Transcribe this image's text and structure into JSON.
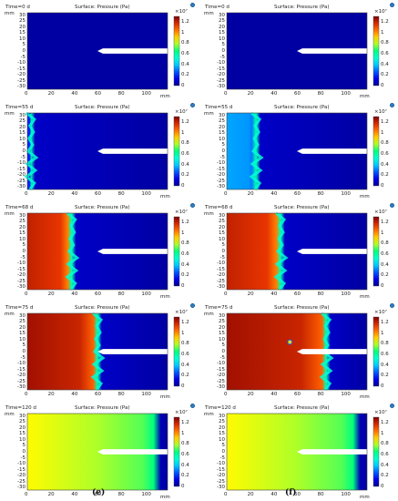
{
  "common": {
    "surface_title": "Surface: Pressure (Pa)",
    "unit": "mm",
    "exponent_label": "×10⁷",
    "x_ticks": [
      "0",
      "20",
      "40",
      "60",
      "80",
      "100"
    ],
    "y_ticks": [
      "30",
      "25",
      "20",
      "15",
      "10",
      "5",
      "0",
      "-5",
      "-10",
      "-15",
      "-20",
      "-25",
      "-30"
    ],
    "colorbar_ticks": [
      "1.2",
      "1",
      "0.8",
      "0.6",
      "0.4",
      "0.2",
      "0"
    ],
    "colormap": "rainbow",
    "colorbar_range": [
      0,
      1.3
    ],
    "x_range": [
      0,
      120
    ],
    "y_range": [
      -32,
      32
    ]
  },
  "chart_data": [
    {
      "type": "heatmap",
      "column": "e",
      "time_label": "Time=0 d",
      "front_mm": 0,
      "max_pressure": 0
    },
    {
      "type": "heatmap",
      "column": "f",
      "time_label": "Time=0 d",
      "front_mm": 0,
      "max_pressure": 0
    },
    {
      "type": "heatmap",
      "column": "e",
      "time_label": "Time=55 d",
      "front_mm": 3,
      "max_pressure": 0.2
    },
    {
      "type": "heatmap",
      "column": "f",
      "time_label": "Time=55 d",
      "front_mm": 25,
      "max_pressure": 0.35
    },
    {
      "type": "heatmap",
      "column": "e",
      "time_label": "Time=68 d",
      "front_mm": 38,
      "max_pressure": 1.2
    },
    {
      "type": "heatmap",
      "column": "f",
      "time_label": "Time=68 d",
      "front_mm": 46,
      "max_pressure": 1.2
    },
    {
      "type": "heatmap",
      "column": "e",
      "time_label": "Time=75 d",
      "front_mm": 60,
      "max_pressure": 1.25
    },
    {
      "type": "heatmap",
      "column": "f",
      "time_label": "Time=75 d",
      "front_mm": 85,
      "max_pressure": 1.25,
      "hotspot_mm": [
        54,
        8
      ]
    },
    {
      "type": "heatmap",
      "column": "e",
      "time_label": "Time=120 d",
      "front_mm": 110,
      "max_pressure": 0.85
    },
    {
      "type": "heatmap",
      "column": "f",
      "time_label": "Time=120 d",
      "front_mm": 112,
      "max_pressure": 0.85
    }
  ],
  "column_labels": [
    "(e)",
    "(f)"
  ]
}
